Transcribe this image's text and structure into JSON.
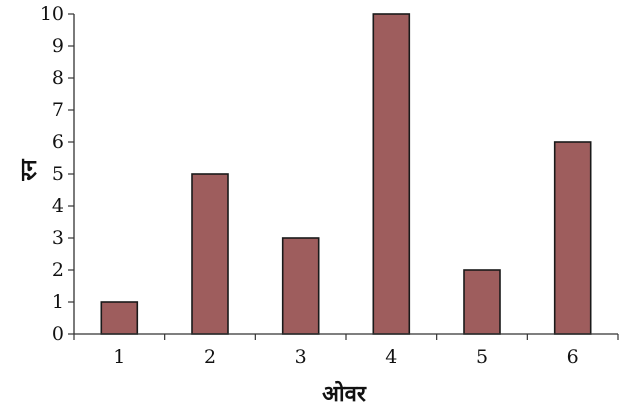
{
  "chart_data": {
    "type": "bar",
    "categories": [
      "1",
      "2",
      "3",
      "4",
      "5",
      "6"
    ],
    "values": [
      1,
      5,
      3,
      10,
      2,
      6
    ],
    "title": "",
    "xlabel": "ओवर",
    "ylabel": "रन",
    "ylim": [
      0,
      10
    ],
    "yticks": [
      "0",
      "1",
      "2",
      "3",
      "4",
      "5",
      "6",
      "7",
      "8",
      "9",
      "10"
    ],
    "grid": false,
    "legend": "none",
    "colors": {
      "bar_fill": "#9e5d5d",
      "bar_stroke": "#1a1a1a",
      "axis": "#333333"
    }
  }
}
